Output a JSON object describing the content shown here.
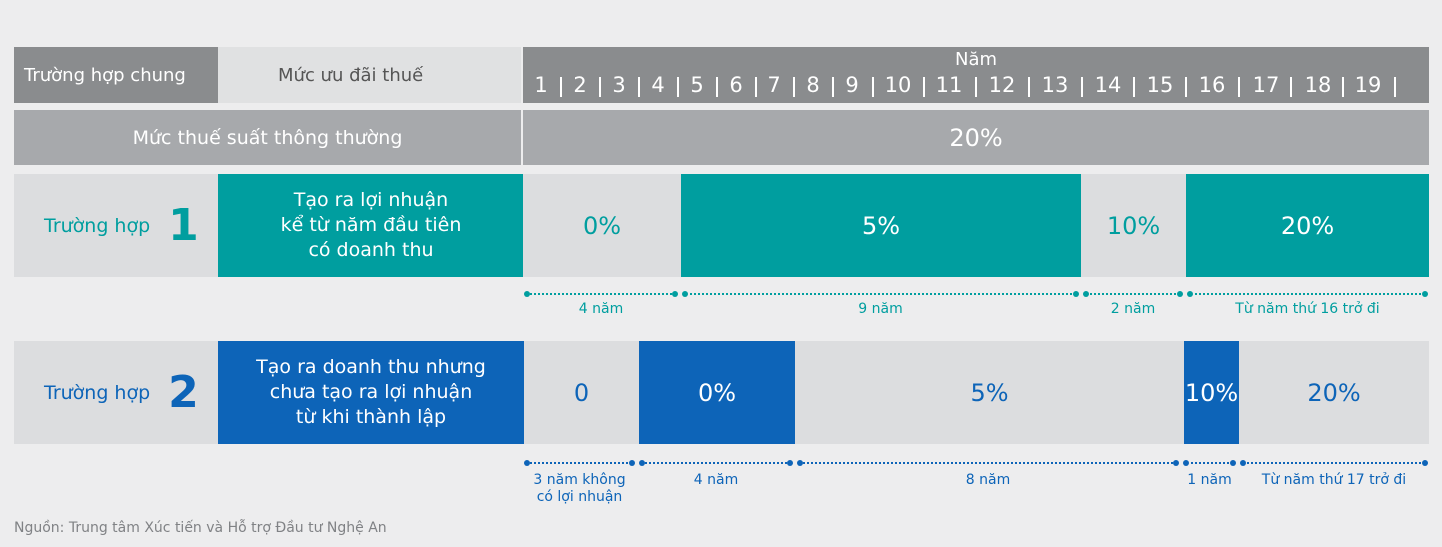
{
  "header": {
    "general_case": "Trường hợp chung",
    "tax_incentive": "Mức ưu đãi thuế",
    "year_title": "Năm",
    "years": [
      "1",
      "2",
      "3",
      "4",
      "5",
      "6",
      "7",
      "8",
      "9",
      "10",
      "11",
      "12",
      "13",
      "14",
      "15",
      "16",
      "17",
      "18",
      "19"
    ]
  },
  "normal_rate": {
    "label": "Mức thuế suất thông thường",
    "value": "20%"
  },
  "case1": {
    "word": "Trường hợp",
    "number": "1",
    "desc_lines": [
      "Tạo ra lợi nhuận",
      "kể từ năm đầu tiên",
      "có doanh thu"
    ],
    "segments": [
      "0%",
      "5%",
      "10%",
      "20%"
    ],
    "durations": [
      "4 năm",
      "9 năm",
      "2 năm",
      "Từ năm thứ 16 trở đi"
    ]
  },
  "case2": {
    "word": "Trường hợp",
    "number": "2",
    "desc_lines": [
      "Tạo ra doanh thu nhưng",
      "chưa tạo ra lợi nhuận",
      "từ khi thành lập"
    ],
    "segments": [
      "0",
      "0%",
      "5%",
      "10%",
      "20%"
    ],
    "durations": [
      "3 năm không|có lợi nhuận",
      "4 năm",
      "8 năm",
      "1 năm",
      "Từ năm thứ 17 trở đi"
    ]
  },
  "source": "Nguồn: Trung tâm Xúc tiến và Hỗ trợ Đầu tư Nghệ An",
  "colors": {
    "teal": "#009e9f",
    "blue": "#0d64b8",
    "grey_dark": "#8a8c8e",
    "grey_mid": "#a7a9ac",
    "grey_light": "#dcdddf"
  }
}
